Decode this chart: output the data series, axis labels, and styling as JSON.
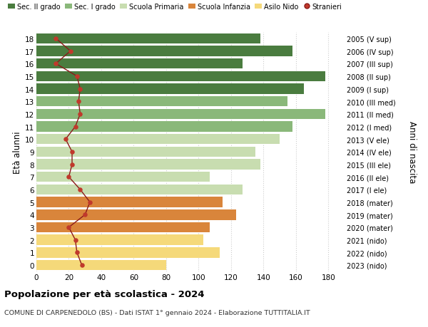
{
  "ages": [
    18,
    17,
    16,
    15,
    14,
    13,
    12,
    11,
    10,
    9,
    8,
    7,
    6,
    5,
    4,
    3,
    2,
    1,
    0
  ],
  "right_labels": [
    "2005 (V sup)",
    "2006 (IV sup)",
    "2007 (III sup)",
    "2008 (II sup)",
    "2009 (I sup)",
    "2010 (III med)",
    "2011 (II med)",
    "2012 (I med)",
    "2013 (V ele)",
    "2014 (IV ele)",
    "2015 (III ele)",
    "2016 (II ele)",
    "2017 (I ele)",
    "2018 (mater)",
    "2019 (mater)",
    "2020 (mater)",
    "2021 (nido)",
    "2022 (nido)",
    "2023 (nido)"
  ],
  "bar_values": [
    138,
    158,
    127,
    178,
    165,
    155,
    178,
    158,
    150,
    135,
    138,
    107,
    127,
    115,
    123,
    107,
    103,
    113,
    80
  ],
  "bar_colors": [
    "#4a7c3f",
    "#4a7c3f",
    "#4a7c3f",
    "#4a7c3f",
    "#4a7c3f",
    "#8ab87a",
    "#8ab87a",
    "#8ab87a",
    "#c8ddb0",
    "#c8ddb0",
    "#c8ddb0",
    "#c8ddb0",
    "#c8ddb0",
    "#d9853b",
    "#d9853b",
    "#d9853b",
    "#f5d97a",
    "#f5d97a",
    "#f5d97a"
  ],
  "stranieri_values": [
    12,
    21,
    12,
    25,
    27,
    26,
    27,
    24,
    18,
    22,
    22,
    20,
    27,
    33,
    30,
    20,
    24,
    25,
    28
  ],
  "xlim": [
    0,
    190
  ],
  "xticks": [
    0,
    20,
    40,
    60,
    80,
    100,
    120,
    140,
    160,
    180
  ],
  "legend_labels": [
    "Sec. II grado",
    "Sec. I grado",
    "Scuola Primaria",
    "Scuola Infanzia",
    "Asilo Nido",
    "Stranieri"
  ],
  "legend_colors": [
    "#4a7c3f",
    "#8ab87a",
    "#c8ddb0",
    "#d9853b",
    "#f5d97a",
    "#c0392b"
  ],
  "ylabel_left": "Età alunni",
  "ylabel_right": "Anni di nascita",
  "title": "Popolazione per età scolastica - 2024",
  "subtitle": "COMUNE DI CARPENEDOLO (BS) - Dati ISTAT 1° gennaio 2024 - Elaborazione TUTTITALIA.IT",
  "bg_color": "#ffffff",
  "grid_color": "#cccccc"
}
